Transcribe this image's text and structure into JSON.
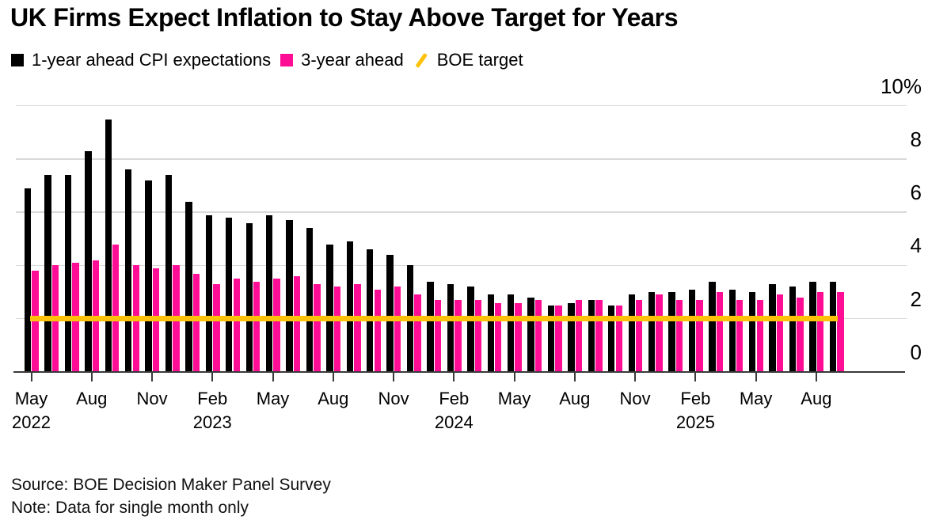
{
  "title": "UK Firms Expect Inflation to Stay Above Target for Years",
  "legend": [
    {
      "label": "1-year ahead CPI expectations",
      "swatch": "square",
      "color": "#000000"
    },
    {
      "label": "3-year ahead",
      "swatch": "square",
      "color": "#ff0d94"
    },
    {
      "label": "BOE target",
      "swatch": "slash",
      "color": "#ffc20a"
    }
  ],
  "footer": {
    "source": "Source: BOE Decision Maker Panel Survey",
    "note": "Note: Data for single month only"
  },
  "chart_data": {
    "type": "bar",
    "title": "UK Firms Expect Inflation to Stay Above Target for Years",
    "xlabel": "",
    "ylabel": "",
    "ylim": [
      0,
      10
    ],
    "grid": "horizontal",
    "legend_position": "top-left",
    "y_axis_side": "right",
    "yticks": [
      0,
      2,
      4,
      6,
      8,
      10
    ],
    "ytick_labels": [
      "0",
      "2",
      "4",
      "6",
      "8",
      "10%"
    ],
    "categories": [
      "May 2022",
      "Jun 2022",
      "Jul 2022",
      "Aug 2022",
      "Sep 2022",
      "Oct 2022",
      "Nov 2022",
      "Dec 2022",
      "Jan 2023",
      "Feb 2023",
      "Mar 2023",
      "Apr 2023",
      "May 2023",
      "Jun 2023",
      "Jul 2023",
      "Aug 2023",
      "Sep 2023",
      "Oct 2023",
      "Nov 2023",
      "Dec 2023",
      "Jan 2024",
      "Feb 2024",
      "Mar 2024",
      "Apr 2024",
      "May 2024",
      "Jun 2024",
      "Jul 2024",
      "Aug 2024",
      "Sep 2024",
      "Oct 2024",
      "Nov 2024",
      "Dec 2024",
      "Jan 2025",
      "Feb 2025",
      "Mar 2025",
      "Apr 2025",
      "May 2025",
      "Jun 2025",
      "Jul 2025",
      "Aug 2025",
      "Sep 2025"
    ],
    "series": [
      {
        "name": "1-year ahead CPI expectations",
        "color": "#000000",
        "values": [
          6.9,
          7.4,
          7.4,
          8.3,
          9.5,
          7.6,
          7.2,
          7.4,
          6.4,
          5.9,
          5.8,
          5.6,
          5.9,
          5.7,
          5.4,
          4.8,
          4.9,
          4.6,
          4.4,
          4.0,
          3.4,
          3.3,
          3.2,
          2.9,
          2.9,
          2.8,
          2.5,
          2.6,
          2.7,
          2.5,
          2.9,
          3.0,
          3.0,
          3.1,
          3.4,
          3.1,
          3.0,
          3.3,
          3.2,
          3.4,
          3.4
        ]
      },
      {
        "name": "3-year ahead",
        "color": "#ff0d94",
        "values": [
          3.8,
          4.0,
          4.1,
          4.2,
          4.8,
          4.0,
          3.9,
          4.0,
          3.7,
          3.3,
          3.5,
          3.4,
          3.5,
          3.6,
          3.3,
          3.2,
          3.3,
          3.1,
          3.2,
          2.9,
          2.7,
          2.7,
          2.7,
          2.6,
          2.6,
          2.7,
          2.5,
          2.7,
          2.7,
          2.5,
          2.7,
          2.9,
          2.7,
          2.7,
          3.0,
          2.7,
          2.7,
          2.9,
          2.8,
          3.0,
          3.0
        ]
      }
    ],
    "target_line": {
      "label": "BOE target",
      "value": 2,
      "color": "#ffc20a"
    },
    "x_tick_every": 3,
    "x_ticks": [
      {
        "month": "May",
        "year": "2022"
      },
      {
        "month": "Aug",
        "year": ""
      },
      {
        "month": "Nov",
        "year": ""
      },
      {
        "month": "Feb",
        "year": "2023"
      },
      {
        "month": "May",
        "year": ""
      },
      {
        "month": "Aug",
        "year": ""
      },
      {
        "month": "Nov",
        "year": ""
      },
      {
        "month": "Feb",
        "year": "2024"
      },
      {
        "month": "May",
        "year": ""
      },
      {
        "month": "Aug",
        "year": ""
      },
      {
        "month": "Nov",
        "year": ""
      },
      {
        "month": "Feb",
        "year": "2025"
      },
      {
        "month": "May",
        "year": ""
      },
      {
        "month": "Aug",
        "year": ""
      }
    ]
  }
}
